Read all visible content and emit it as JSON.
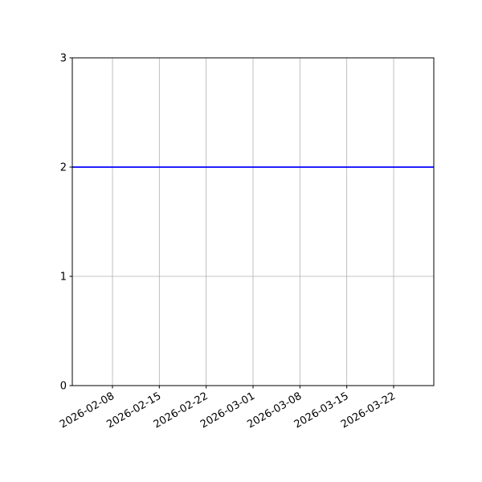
{
  "chart_data": {
    "type": "line",
    "title": "",
    "xlabel": "",
    "ylabel": "",
    "x_axis_type": "date",
    "xlim": [
      "2026-02-02",
      "2026-03-28"
    ],
    "ylim": [
      0,
      3
    ],
    "x_ticks": [
      "2026-02-08",
      "2026-02-15",
      "2026-02-22",
      "2026-03-01",
      "2026-03-08",
      "2026-03-15",
      "2026-03-22"
    ],
    "y_ticks": [
      0,
      1,
      2,
      3
    ],
    "grid": true,
    "series": [
      {
        "color": "#0000ff",
        "x": [
          "2026-02-02",
          "2026-03-28"
        ],
        "y": [
          2,
          2
        ]
      }
    ]
  }
}
